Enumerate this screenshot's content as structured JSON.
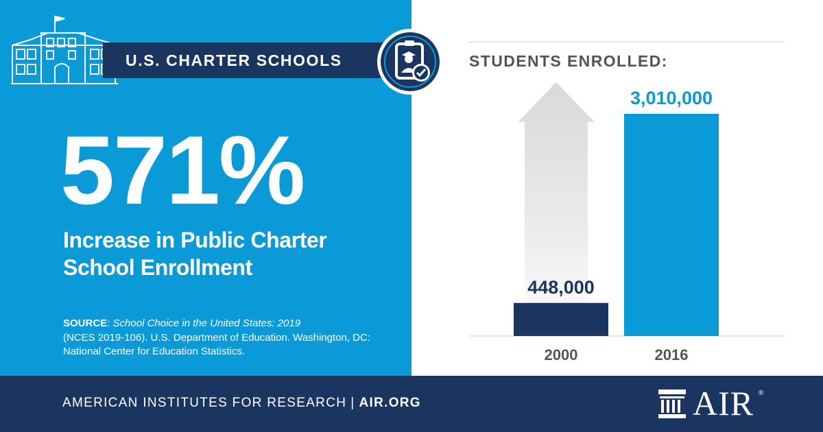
{
  "header": {
    "title": "U.S. CHARTER SCHOOLS"
  },
  "headline": {
    "big_number": "571%",
    "subhead": "Increase in Public Charter School Enrollment"
  },
  "source": {
    "label": "SOURCE",
    "title": "School Choice in the United States: 2019",
    "rest": "(NCES 2019-106). U.S. Department of Education. Washington, DC: National Center for Education Statistics."
  },
  "chart_data": {
    "type": "bar",
    "title": "STUDENTS ENROLLED:",
    "categories": [
      "2000",
      "2016"
    ],
    "values": [
      448000,
      3010000
    ],
    "value_labels": [
      "448,000",
      "3,010,000"
    ],
    "colors": [
      "#1b3561",
      "#0a9ad8"
    ],
    "arrow_color": "#d9d9d9"
  },
  "footer": {
    "org": "AMERICAN INSTITUTES FOR RESEARCH",
    "separator": "|",
    "site": "AIR.ORG",
    "logo_text": "AIR",
    "logo_mark": "®"
  },
  "icons": {
    "building": "school-building-icon",
    "badge": "graduate-check-icon",
    "logo": "air-columns-logo-icon"
  }
}
